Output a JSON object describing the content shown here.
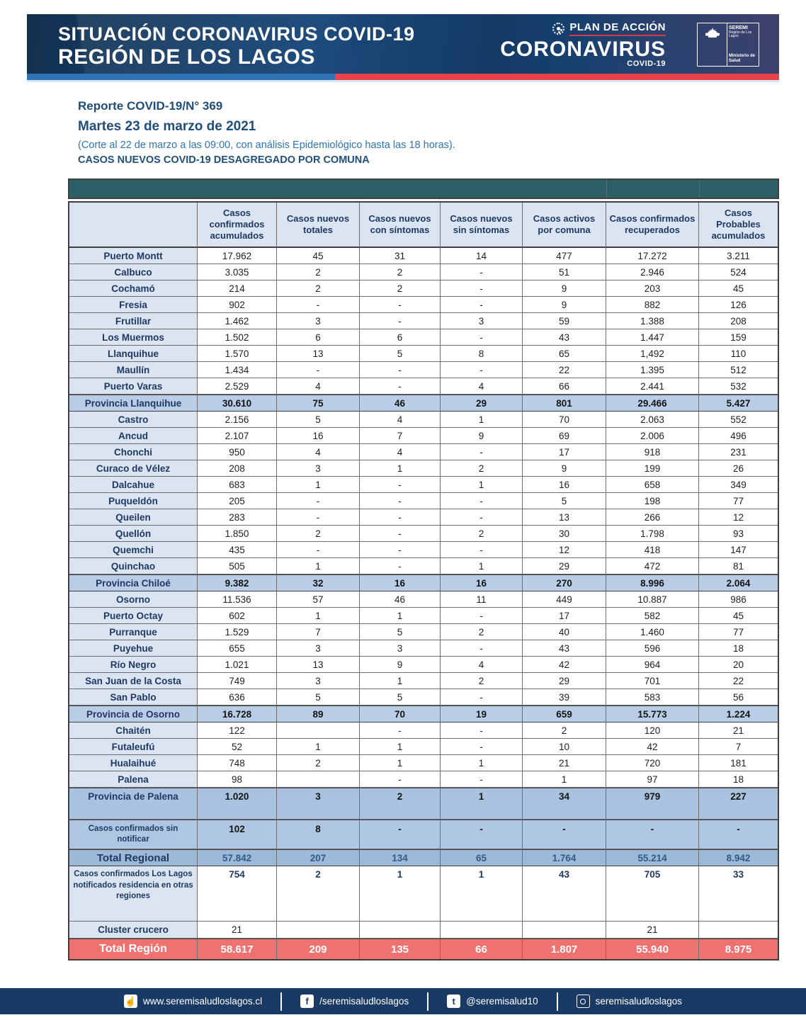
{
  "colors": {
    "banner_navy": "#16365c",
    "strip_blue": "#2e74b6",
    "strip_red": "#e8434b",
    "teal_bar": "#2d5f66",
    "header_cell_bg": "#dbe5f1",
    "provincia_row_bg": "#b9cde6",
    "total_regional_bg": "#9db9d8",
    "total_region_bg": "#ee7270",
    "text_navy": "#1f3864",
    "footer_navy": "#1a3a66"
  },
  "header": {
    "title_line1": "SITUACIÓN CORONAVIRUS COVID-19",
    "title_line2": "REGIÓN DE LOS LAGOS",
    "plan_label": "PLAN DE ACCIÓN",
    "brand": "CORONAVIRUS",
    "brand_sub": "COVID-19",
    "logo": {
      "seremi": "SEREMI",
      "region": "Región de Los Lagos",
      "ministry": "Ministerio de Salud"
    }
  },
  "report": {
    "line1": "Reporte COVID-19/N° 369",
    "line2": "Martes 23 de marzo de 2021",
    "line3": "(Corte al 22 de marzo a las 09:00, con análisis Epidemiológico hasta las 18 horas).",
    "line4": "CASOS NUEVOS COVID-19 DESAGREGADO POR COMUNA"
  },
  "table": {
    "columns": [
      "",
      "Casos confirmados acumulados",
      "Casos nuevos totales",
      "Casos nuevos con síntomas",
      "Casos nuevos sin síntomas",
      "Casos activos por comuna",
      "Casos confirmados recuperados",
      "Casos Probables acumulados"
    ],
    "rows": [
      {
        "label": "Puerto Montt",
        "type": "comuna",
        "values": [
          "17.962",
          "45",
          "31",
          "14",
          "477",
          "17.272",
          "3.211"
        ]
      },
      {
        "label": "Calbuco",
        "type": "comuna",
        "values": [
          "3.035",
          "2",
          "2",
          "-",
          "51",
          "2.946",
          "524"
        ]
      },
      {
        "label": "Cochamó",
        "type": "comuna",
        "values": [
          "214",
          "2",
          "2",
          "-",
          "9",
          "203",
          "45"
        ]
      },
      {
        "label": "Fresia",
        "type": "comuna",
        "values": [
          "902",
          "-",
          "-",
          "-",
          "9",
          "882",
          "126"
        ]
      },
      {
        "label": "Frutillar",
        "type": "comuna",
        "values": [
          "1.462",
          "3",
          "-",
          "3",
          "59",
          "1.388",
          "208"
        ]
      },
      {
        "label": "Los Muermos",
        "type": "comuna",
        "values": [
          "1.502",
          "6",
          "6",
          "-",
          "43",
          "1.447",
          "159"
        ]
      },
      {
        "label": "Llanquihue",
        "type": "comuna",
        "values": [
          "1.570",
          "13",
          "5",
          "8",
          "65",
          "1,492",
          "110"
        ]
      },
      {
        "label": "Maullín",
        "type": "comuna",
        "values": [
          "1.434",
          "-",
          "-",
          "-",
          "22",
          "1.395",
          "512"
        ]
      },
      {
        "label": "Puerto Varas",
        "type": "comuna",
        "values": [
          "2.529",
          "4",
          "-",
          "4",
          "66",
          "2.441",
          "532"
        ]
      },
      {
        "label": "Provincia Llanquihue",
        "type": "provincia",
        "values": [
          "30.610",
          "75",
          "46",
          "29",
          "801",
          "29.466",
          "5.427"
        ]
      },
      {
        "label": "Castro",
        "type": "comuna",
        "values": [
          "2.156",
          "5",
          "4",
          "1",
          "70",
          "2.063",
          "552"
        ]
      },
      {
        "label": "Ancud",
        "type": "comuna",
        "values": [
          "2.107",
          "16",
          "7",
          "9",
          "69",
          "2.006",
          "496"
        ]
      },
      {
        "label": "Chonchi",
        "type": "comuna",
        "values": [
          "950",
          "4",
          "4",
          "-",
          "17",
          "918",
          "231"
        ]
      },
      {
        "label": "Curaco de Vélez",
        "type": "comuna",
        "values": [
          "208",
          "3",
          "1",
          "2",
          "9",
          "199",
          "26"
        ]
      },
      {
        "label": "Dalcahue",
        "type": "comuna",
        "values": [
          "683",
          "1",
          "-",
          "1",
          "16",
          "658",
          "349"
        ]
      },
      {
        "label": "Puqueldón",
        "type": "comuna",
        "values": [
          "205",
          "-",
          "-",
          "-",
          "5",
          "198",
          "77"
        ]
      },
      {
        "label": "Queilen",
        "type": "comuna",
        "values": [
          "283",
          "-",
          "-",
          "-",
          "13",
          "266",
          "12"
        ]
      },
      {
        "label": "Quellón",
        "type": "comuna",
        "values": [
          "1.850",
          "2",
          "-",
          "2",
          "30",
          "1.798",
          "93"
        ]
      },
      {
        "label": "Quemchi",
        "type": "comuna",
        "values": [
          "435",
          "-",
          "-",
          "-",
          "12",
          "418",
          "147"
        ]
      },
      {
        "label": "Quinchao",
        "type": "comuna",
        "values": [
          "505",
          "1",
          "-",
          "1",
          "29",
          "472",
          "81"
        ]
      },
      {
        "label": "Provincia Chiloé",
        "type": "provincia",
        "values": [
          "9.382",
          "32",
          "16",
          "16",
          "270",
          "8.996",
          "2.064"
        ]
      },
      {
        "label": "Osorno",
        "type": "comuna",
        "values": [
          "11.536",
          "57",
          "46",
          "11",
          "449",
          "10.887",
          "986"
        ]
      },
      {
        "label": "Puerto Octay",
        "type": "comuna",
        "values": [
          "602",
          "1",
          "1",
          "-",
          "17",
          "582",
          "45"
        ]
      },
      {
        "label": "Purranque",
        "type": "comuna",
        "values": [
          "1.529",
          "7",
          "5",
          "2",
          "40",
          "1.460",
          "77"
        ]
      },
      {
        "label": "Puyehue",
        "type": "comuna",
        "values": [
          "655",
          "3",
          "3",
          "-",
          "43",
          "596",
          "18"
        ]
      },
      {
        "label": "Río Negro",
        "type": "comuna",
        "values": [
          "1.021",
          "13",
          "9",
          "4",
          "42",
          "964",
          "20"
        ]
      },
      {
        "label": "San Juan de la Costa",
        "type": "comuna",
        "values": [
          "749",
          "3",
          "1",
          "2",
          "29",
          "701",
          "22"
        ]
      },
      {
        "label": "San Pablo",
        "type": "comuna",
        "values": [
          "636",
          "5",
          "5",
          "-",
          "39",
          "583",
          "56"
        ]
      },
      {
        "label": "Provincia de Osorno",
        "type": "provincia",
        "values": [
          "16.728",
          "89",
          "70",
          "19",
          "659",
          "15.773",
          "1.224"
        ]
      },
      {
        "label": "Chaitén",
        "type": "comuna",
        "values": [
          "122",
          "",
          "-",
          "-",
          "2",
          "120",
          "21"
        ]
      },
      {
        "label": "Futaleufú",
        "type": "comuna",
        "values": [
          "52",
          "1",
          "1",
          "-",
          "10",
          "42",
          "7"
        ]
      },
      {
        "label": "Hualaihué",
        "type": "comuna",
        "values": [
          "748",
          "2",
          "1",
          "1",
          "21",
          "720",
          "181"
        ]
      },
      {
        "label": "Palena",
        "type": "comuna",
        "values": [
          "98",
          "",
          "-",
          "-",
          "1",
          "97",
          "18"
        ]
      },
      {
        "label": "Provincia de Palena",
        "type": "provincia-tall",
        "values": [
          "1.020",
          "3",
          "2",
          "1",
          "34",
          "979",
          "227"
        ]
      },
      {
        "label": "Casos confirmados sin notificar",
        "type": "note",
        "values": [
          "102",
          "8",
          "-",
          "-",
          "-",
          "-",
          "-"
        ]
      },
      {
        "label": "Total Regional",
        "type": "total-blue",
        "values": [
          "57.842",
          "207",
          "134",
          "65",
          "1.764",
          "55.214",
          "8.942"
        ]
      },
      {
        "label": "Casos confirmados Los Lagos  notificados residencia en otras regiones",
        "type": "tall-white",
        "values": [
          "754",
          "2",
          "1",
          "1",
          "43",
          "705",
          "33"
        ]
      },
      {
        "label": "Cluster crucero",
        "type": "cluster",
        "values": [
          "21",
          "",
          "",
          "",
          "",
          "21",
          ""
        ]
      },
      {
        "label": "Total Región",
        "type": "total-red",
        "values": [
          "58.617",
          "209",
          "135",
          "66",
          "1.807",
          "55.940",
          "8.975"
        ]
      }
    ]
  },
  "footer": {
    "items": [
      {
        "icon": "web-hand-icon",
        "text": "www.seremisaludloslagos.cl"
      },
      {
        "icon": "facebook-icon",
        "text": "/seremisaludloslagos"
      },
      {
        "icon": "tumblr-icon",
        "text": "@seremisalud10"
      },
      {
        "icon": "instagram-icon",
        "text": "seremisaludloslagos"
      }
    ]
  }
}
